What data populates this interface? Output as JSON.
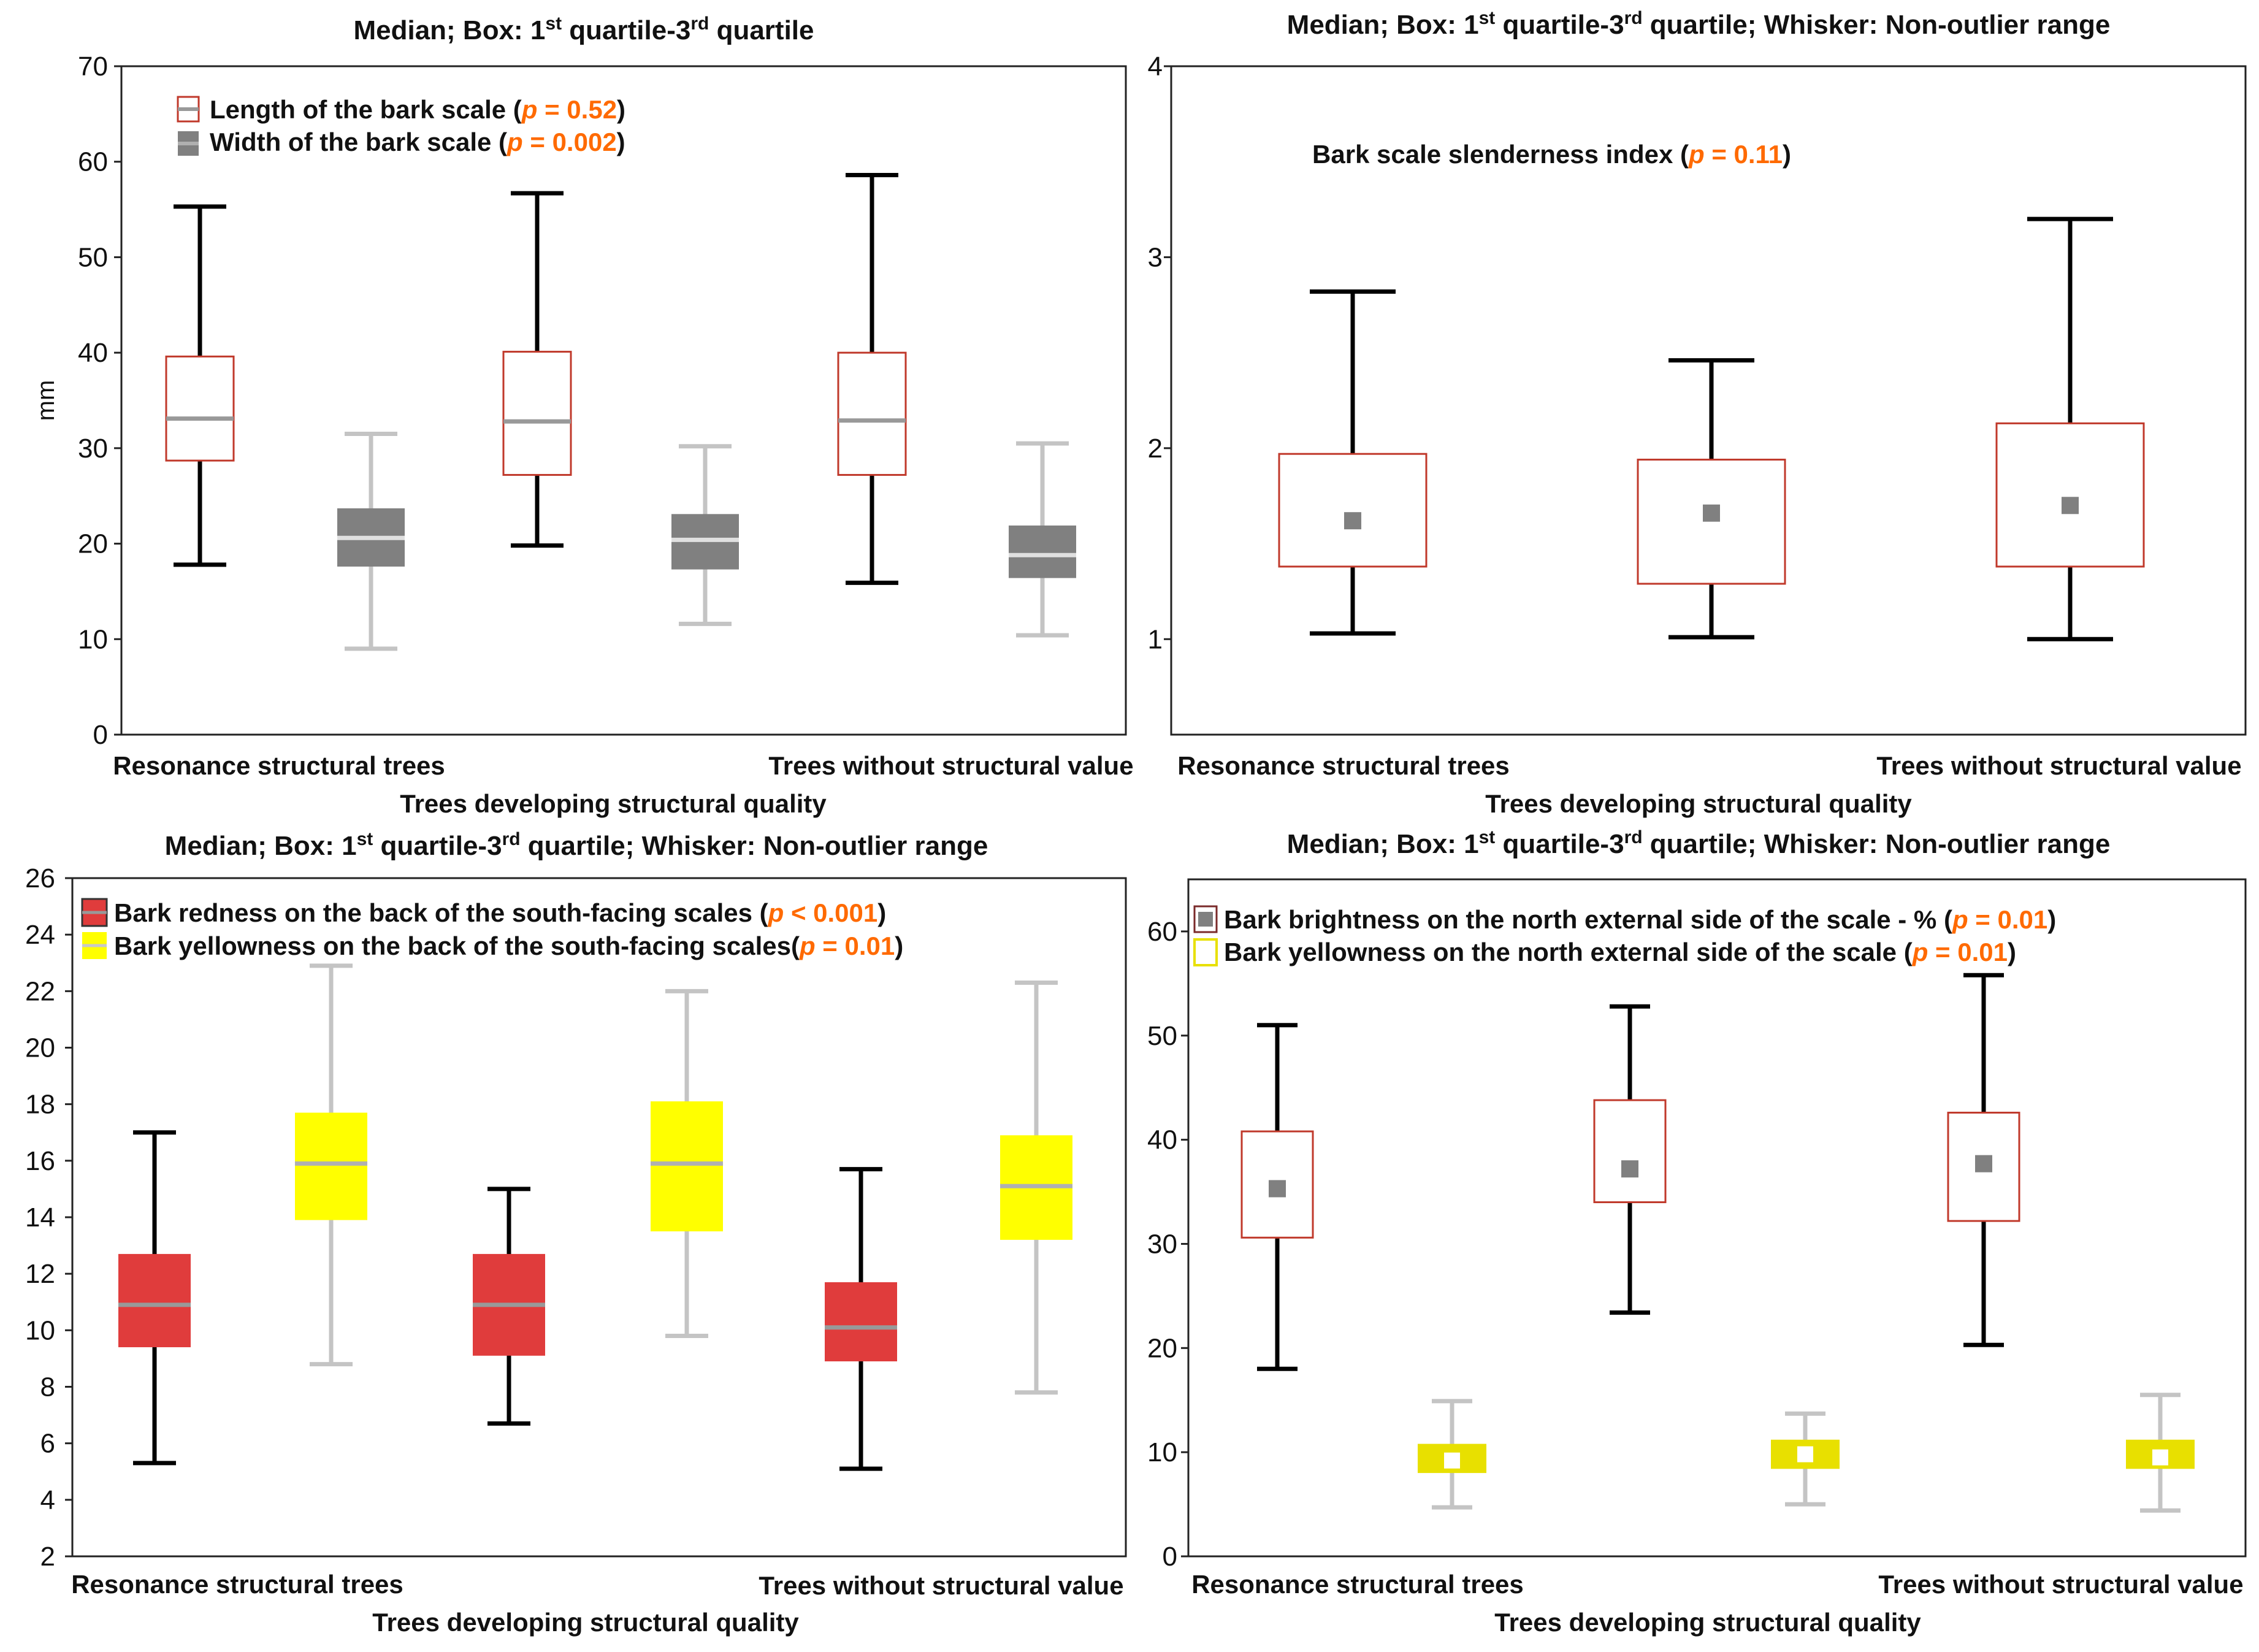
{
  "colors": {
    "black": "#000000",
    "grey": "#808080",
    "light_grey": "#c4c4c4",
    "red": "#e03c3c",
    "yellow": "#ffff00",
    "yellow_dark": "#e8e000",
    "outline_red": "#c0392b",
    "median_grey": "#999999",
    "pvalue_orange": "#ff6a00"
  },
  "chart_data": [
    {
      "type": "box",
      "title": {
        "prefix": "Median; Box: 1",
        "sup1": "st",
        "mid": " quartile-3",
        "sup2": "rd",
        "suffix": " quartile"
      },
      "ylabel": "mm",
      "ylim": [
        0,
        70
      ],
      "yticks": [
        0,
        10,
        20,
        30,
        40,
        50,
        60,
        70
      ],
      "categories": [
        "Resonance structural trees",
        "Trees developing structural quality",
        "Trees without structural value"
      ],
      "xlabel_left": "Resonance structural trees",
      "xlabel_right": "Trees without structural value",
      "xlabel_center": "Trees developing structural quality",
      "legend": [
        {
          "label": "Length of the bark scale ",
          "open": "(",
          "p": "p",
          "pvalue": " = 0.52",
          "close": ")",
          "symbol": "outline-red-median"
        },
        {
          "label": "Width of the bark scale ",
          "open": "(",
          "p": "p",
          "pvalue": " = 0.002",
          "close": ")",
          "symbol": "filled-grey"
        }
      ],
      "series": [
        {
          "name": "Length of the bark scale",
          "style": "outline-red",
          "whisker": "black",
          "center": "median",
          "stats": [
            {
              "category": "Resonance structural trees",
              "min": 17.8,
              "q1": 28.7,
              "median": 33.1,
              "q3": 39.6,
              "max": 55.3
            },
            {
              "category": "Trees developing structural quality",
              "min": 19.8,
              "q1": 27.2,
              "median": 32.8,
              "q3": 40.1,
              "max": 56.7
            },
            {
              "category": "Trees without structural value",
              "min": 15.9,
              "q1": 27.2,
              "median": 32.9,
              "q3": 40.0,
              "max": 58.6
            }
          ]
        },
        {
          "name": "Width of the bark scale",
          "style": "filled-grey",
          "whisker": "light-grey",
          "center": "median",
          "stats": [
            {
              "category": "Resonance structural trees",
              "min": 9.0,
              "q1": 17.6,
              "median": 20.6,
              "q3": 23.7,
              "max": 31.5
            },
            {
              "category": "Trees developing structural quality",
              "min": 11.6,
              "q1": 17.3,
              "median": 20.4,
              "q3": 23.1,
              "max": 30.2
            },
            {
              "category": "Trees without structural value",
              "min": 10.4,
              "q1": 16.4,
              "median": 18.8,
              "q3": 21.9,
              "max": 30.5
            }
          ]
        }
      ]
    },
    {
      "type": "box",
      "title": {
        "prefix": "Median; Box: 1",
        "sup1": "st",
        "mid": " quartile-3",
        "sup2": "rd",
        "suffix": " quartile; Whisker: Non-outlier range"
      },
      "ylabel": "",
      "ylim": [
        0.5,
        4
      ],
      "yticks": [
        1,
        2,
        3,
        4
      ],
      "categories": [
        "Resonance structural trees",
        "Trees developing structural quality",
        "Trees without structural value"
      ],
      "xlabel_left": "Resonance structural trees",
      "xlabel_right": "Trees without structural value",
      "xlabel_center": "Trees developing structural quality",
      "annotation": {
        "label": "Bark scale slenderness index ",
        "open": "(",
        "p": "p",
        "pvalue": " = 0.11",
        "close": ")"
      },
      "series": [
        {
          "name": "Bark scale slenderness index",
          "style": "outline-red",
          "whisker": "black",
          "center": "square-grey",
          "stats": [
            {
              "category": "Resonance structural trees",
              "min": 1.03,
              "q1": 1.38,
              "median": 1.62,
              "q3": 1.97,
              "max": 2.82
            },
            {
              "category": "Trees developing structural quality",
              "min": 1.01,
              "q1": 1.29,
              "median": 1.66,
              "q3": 1.94,
              "max": 2.46
            },
            {
              "category": "Trees without structural value",
              "min": 1.0,
              "q1": 1.38,
              "median": 1.7,
              "q3": 2.13,
              "max": 3.2
            }
          ]
        }
      ]
    },
    {
      "type": "box",
      "title": {
        "prefix": "Median; Box: 1",
        "sup1": "st",
        "mid": " quartile-3",
        "sup2": "rd",
        "suffix": " quartile; Whisker: Non-outlier range"
      },
      "ylabel": "",
      "ylim": [
        2,
        26
      ],
      "yticks": [
        2,
        4,
        6,
        8,
        10,
        12,
        14,
        16,
        18,
        20,
        22,
        24,
        26
      ],
      "categories": [
        "Resonance structural trees",
        "Trees developing structural quality",
        "Trees without structural value"
      ],
      "xlabel_left": "Resonance structural trees",
      "xlabel_right": "Trees without structural value",
      "xlabel_center": "Trees developing structural quality",
      "legend": [
        {
          "label": "Bark redness on the back of the south-facing scales ",
          "open": "(",
          "p": "p",
          "pvalue": " < 0.001",
          "close": ")",
          "symbol": "filled-red"
        },
        {
          "label": "Bark yellowness on the back of the south-facing scales",
          "open": "(",
          "p": "p",
          "pvalue": " = 0.01",
          "close": ")",
          "symbol": "filled-yellow"
        }
      ],
      "series": [
        {
          "name": "Bark redness on the back of the south-facing scales",
          "style": "filled-red",
          "whisker": "black",
          "center": "median",
          "stats": [
            {
              "category": "Resonance structural trees",
              "min": 5.3,
              "q1": 9.4,
              "median": 10.9,
              "q3": 12.7,
              "max": 17.0
            },
            {
              "category": "Trees developing structural quality",
              "min": 6.7,
              "q1": 9.1,
              "median": 10.9,
              "q3": 12.7,
              "max": 15.0
            },
            {
              "category": "Trees without structural value",
              "min": 5.1,
              "q1": 8.9,
              "median": 10.1,
              "q3": 11.7,
              "max": 15.7
            }
          ]
        },
        {
          "name": "Bark yellowness on the back of the south-facing scales",
          "style": "filled-yellow",
          "whisker": "light-grey",
          "center": "median",
          "stats": [
            {
              "category": "Resonance structural trees",
              "min": 8.8,
              "q1": 13.9,
              "median": 15.9,
              "q3": 17.7,
              "max": 22.9
            },
            {
              "category": "Trees developing structural quality",
              "min": 9.8,
              "q1": 13.5,
              "median": 15.9,
              "q3": 18.1,
              "max": 22.0
            },
            {
              "category": "Trees without structural value",
              "min": 7.8,
              "q1": 13.2,
              "median": 15.1,
              "q3": 16.9,
              "max": 22.3
            }
          ]
        }
      ]
    },
    {
      "type": "box",
      "title": {
        "prefix": "Median; Box: 1",
        "sup1": "st",
        "mid": " quartile-3",
        "sup2": "rd",
        "suffix": " quartile; Whisker: Non-outlier range"
      },
      "ylabel": "",
      "ylim": [
        0,
        65
      ],
      "yticks": [
        0,
        10,
        20,
        30,
        40,
        50,
        60
      ],
      "categories": [
        "Resonance structural trees",
        "Trees developing structural quality",
        "Trees without structural value"
      ],
      "xlabel_left": "Resonance structural trees",
      "xlabel_right": "Trees without structural value",
      "xlabel_center": "Trees developing structural quality",
      "legend": [
        {
          "label": "Bark brightness on the north external side of the scale - % ",
          "open": "(",
          "p": "p",
          "pvalue": " = 0.01",
          "close": ")",
          "symbol": "outline-red-square"
        },
        {
          "label": "Bark yellowness on the north external side of the scale ",
          "open": "(",
          "p": "p",
          "pvalue": " = 0.01",
          "close": ")",
          "symbol": "outline-yellow"
        }
      ],
      "series": [
        {
          "name": "Bark brightness on the north external side of the scale - %",
          "style": "outline-red",
          "whisker": "black",
          "center": "square-grey",
          "stats": [
            {
              "category": "Resonance structural trees",
              "min": 18.0,
              "q1": 30.6,
              "median": 35.3,
              "q3": 40.8,
              "max": 51.0
            },
            {
              "category": "Trees developing structural quality",
              "min": 23.4,
              "q1": 34.0,
              "median": 37.2,
              "q3": 43.8,
              "max": 52.8
            },
            {
              "category": "Trees without structural value",
              "min": 20.3,
              "q1": 32.2,
              "median": 37.7,
              "q3": 42.6,
              "max": 55.8
            }
          ]
        },
        {
          "name": "Bark yellowness on the north external side of the scale",
          "style": "filled-yellow-dark",
          "whisker": "light-grey",
          "center": "square-white",
          "stats": [
            {
              "category": "Resonance structural trees",
              "min": 4.7,
              "q1": 8.0,
              "median": 9.2,
              "q3": 10.8,
              "max": 14.9
            },
            {
              "category": "Trees developing structural quality",
              "min": 5.0,
              "q1": 8.4,
              "median": 9.8,
              "q3": 11.2,
              "max": 13.7
            },
            {
              "category": "Trees without structural value",
              "min": 4.4,
              "q1": 8.4,
              "median": 9.5,
              "q3": 11.2,
              "max": 15.5
            }
          ]
        }
      ]
    }
  ]
}
